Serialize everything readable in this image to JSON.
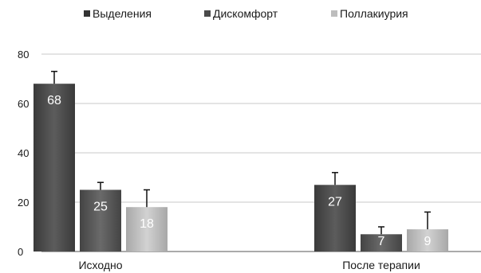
{
  "chart_data": {
    "type": "bar",
    "categories": [
      "Исходно",
      "После терапии"
    ],
    "series": [
      {
        "name": "Выделения",
        "values": [
          68,
          27
        ],
        "errors": [
          5,
          5
        ],
        "color": "#4a4a4a"
      },
      {
        "name": "Дискомфорт",
        "values": [
          25,
          7
        ],
        "errors": [
          3,
          3
        ],
        "color": "#555555"
      },
      {
        "name": "Поллакиурия",
        "values": [
          18,
          9
        ],
        "errors": [
          7,
          7
        ],
        "color": "#bdbdbd"
      }
    ],
    "ylim": [
      0,
      80
    ],
    "yticks": [
      0,
      20,
      40,
      60,
      80
    ],
    "grid": true,
    "legend_position": "top",
    "title": "",
    "xlabel": "",
    "ylabel": ""
  }
}
